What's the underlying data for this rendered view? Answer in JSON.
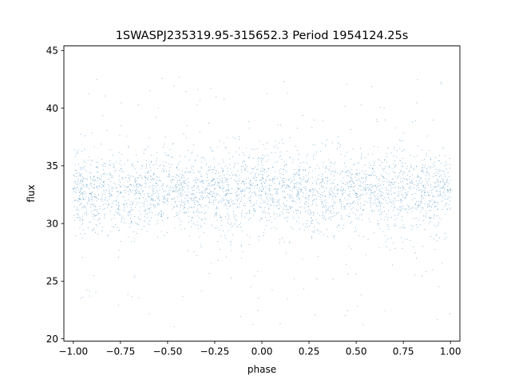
{
  "chart_data": {
    "type": "scatter",
    "title": "1SWASPJ235319.95-315652.3 Period 1954124.25s",
    "xlabel": "phase",
    "ylabel": "flux",
    "xlim": [
      -1.05,
      1.05
    ],
    "ylim": [
      19.8,
      45.4
    ],
    "xticks": [
      -1.0,
      -0.75,
      -0.5,
      -0.25,
      0.0,
      0.25,
      0.5,
      0.75,
      1.0
    ],
    "xtick_labels": [
      "−1.00",
      "−0.75",
      "−0.50",
      "−0.25",
      "0.00",
      "0.25",
      "0.50",
      "0.75",
      "1.00"
    ],
    "yticks": [
      20,
      25,
      30,
      35,
      40,
      45
    ],
    "ytick_labels": [
      "20",
      "25",
      "30",
      "35",
      "40",
      "45"
    ],
    "grid": false,
    "legend": "none",
    "series": [
      {
        "marker_color": "#1f77b4",
        "phase_range": [
          -1.0,
          1.0
        ],
        "flux_core_range": [
          29.5,
          36.5
        ],
        "flux_median": 32.8,
        "flux_min": 21.0,
        "flux_max": 44.0,
        "approx_point_count": 40000,
        "sample_points": [
          {
            "x": -1.0,
            "y": 33.0
          },
          {
            "x": -0.75,
            "y": 33.2
          },
          {
            "x": -0.5,
            "y": 32.5
          },
          {
            "x": -0.25,
            "y": 33.0
          },
          {
            "x": 0.0,
            "y": 32.8
          },
          {
            "x": 0.25,
            "y": 32.4
          },
          {
            "x": 0.5,
            "y": 32.6
          },
          {
            "x": 0.75,
            "y": 33.1
          },
          {
            "x": 1.0,
            "y": 32.9
          }
        ]
      }
    ]
  }
}
